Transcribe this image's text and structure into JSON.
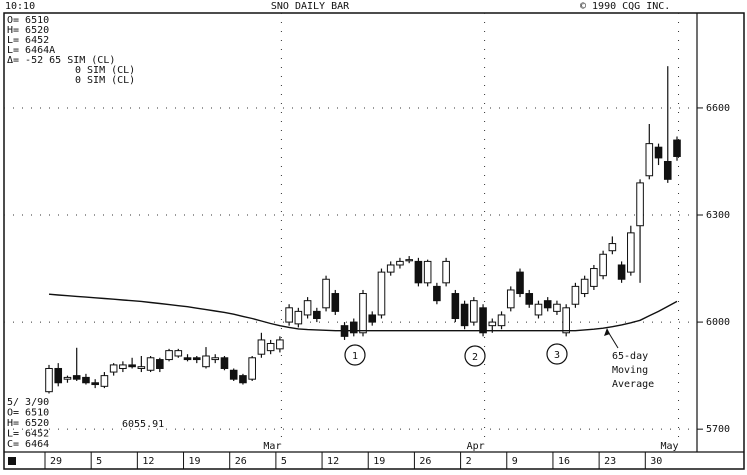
{
  "chart_data": {
    "type": "candlestick",
    "title": "SNO DAILY BAR",
    "time": "10:10",
    "copyright": "© 1990 CQG INC.",
    "readout_top": [
      "O= 6510",
      "H= 6520",
      "L= 6452",
      "L= 6464A",
      "Δ=   -52 65 SIM (CL)",
      "0 SIM (CL)",
      "0 SIM (CL)"
    ],
    "readout_bottom": [
      "5/ 3/90",
      "O= 6510",
      "H= 6520",
      "L= 6452",
      "C= 6464"
    ],
    "ma_value": 6055.91,
    "markers": [
      "1",
      "2",
      "3"
    ],
    "ma_label": [
      "65-day",
      "Moving",
      "Average"
    ],
    "categories": [
      "29",
      null,
      null,
      null,
      null,
      "5",
      null,
      null,
      null,
      null,
      "12",
      null,
      null,
      null,
      null,
      "19",
      null,
      null,
      null,
      null,
      "26",
      null,
      null,
      null,
      null,
      "5",
      null,
      null,
      null,
      null,
      "12",
      null,
      null,
      null,
      null,
      "19",
      null,
      null,
      null,
      null,
      "26",
      null,
      null,
      null,
      null,
      "2",
      null,
      null,
      null,
      null,
      "9",
      null,
      null,
      null,
      null,
      "16",
      null,
      null,
      null,
      null,
      "23",
      null,
      null,
      null,
      null,
      "30",
      null,
      null,
      null
    ],
    "months": [
      null,
      null,
      null,
      null,
      null,
      null,
      null,
      null,
      null,
      null,
      null,
      null,
      null,
      null,
      null,
      null,
      null,
      null,
      null,
      null,
      null,
      null,
      null,
      "Mar",
      null,
      null,
      null,
      null,
      null,
      null,
      null,
      null,
      null,
      null,
      null,
      null,
      null,
      null,
      null,
      null,
      null,
      null,
      null,
      null,
      null,
      "Apr",
      null,
      null,
      null,
      null,
      null,
      null,
      null,
      null,
      null,
      null,
      null,
      null,
      null,
      null,
      null,
      null,
      null,
      null,
      null,
      null,
      "May",
      null,
      null
    ],
    "open": [
      5805,
      5870,
      5840,
      5850,
      5845,
      5830,
      5820,
      5860,
      5870,
      5880,
      5870,
      5865,
      5895,
      5895,
      5905,
      5900,
      5900,
      5875,
      5895,
      5900,
      5865,
      5850,
      5840,
      5910,
      5920,
      5925,
      6000,
      5995,
      6020,
      6030,
      6040,
      6080,
      5990,
      6000,
      5970,
      6020,
      6020,
      6140,
      6160,
      6175,
      6170,
      6110,
      6100,
      6110,
      6080,
      6050,
      6000,
      6040,
      5990,
      5990,
      6040,
      6140,
      6080,
      6020,
      6060,
      6030,
      5970,
      6050,
      6080,
      6100,
      6130,
      6200,
      6160,
      6140,
      6270,
      6410,
      6490,
      6450,
      6510
    ],
    "high": [
      5880,
      5885,
      5850,
      5928,
      5855,
      5840,
      5860,
      5885,
      5890,
      5900,
      5905,
      5905,
      5900,
      5925,
      5925,
      5910,
      5905,
      5930,
      5910,
      5905,
      5870,
      5855,
      5905,
      5970,
      5950,
      5960,
      6050,
      6040,
      6070,
      6040,
      6130,
      6090,
      6000,
      6010,
      6090,
      6030,
      6150,
      6170,
      6180,
      6185,
      6180,
      6175,
      6110,
      6180,
      6090,
      6060,
      6070,
      6050,
      6010,
      6030,
      6100,
      6150,
      6090,
      6060,
      6070,
      6060,
      6050,
      6110,
      6130,
      6160,
      6200,
      6240,
      6170,
      6270,
      6400,
      6555,
      6500,
      6717,
      6520
    ],
    "low": [
      5800,
      5820,
      5830,
      5835,
      5825,
      5815,
      5815,
      5850,
      5860,
      5870,
      5860,
      5860,
      5860,
      5890,
      5900,
      5890,
      5885,
      5870,
      5885,
      5865,
      5835,
      5825,
      5835,
      5900,
      5910,
      5915,
      5990,
      5985,
      6010,
      6000,
      6030,
      6020,
      5950,
      5960,
      5960,
      5990,
      6010,
      6130,
      6150,
      6165,
      6100,
      6100,
      6050,
      6100,
      6000,
      5980,
      5990,
      5960,
      5970,
      5980,
      6030,
      6070,
      6040,
      6010,
      6030,
      6020,
      5960,
      6040,
      6070,
      6090,
      6120,
      6190,
      6110,
      6130,
      6110,
      6400,
      6440,
      6390,
      6452
    ],
    "close": [
      5870,
      5830,
      5845,
      5840,
      5830,
      5825,
      5850,
      5880,
      5880,
      5875,
      5875,
      5900,
      5870,
      5920,
      5920,
      5895,
      5895,
      5905,
      5900,
      5870,
      5840,
      5830,
      5900,
      5950,
      5940,
      5950,
      6040,
      6030,
      6060,
      6010,
      6120,
      6030,
      5960,
      5970,
      6080,
      6000,
      6140,
      6160,
      6170,
      6175,
      6110,
      6170,
      6060,
      6170,
      6010,
      5990,
      6060,
      5970,
      6000,
      6020,
      6090,
      6080,
      6050,
      6050,
      6040,
      6050,
      6040,
      6100,
      6120,
      6150,
      6190,
      6220,
      6120,
      6250,
      6390,
      6500,
      6460,
      6400,
      6464
    ],
    "ma": [
      6078,
      6076,
      6074,
      6072,
      6070,
      6068,
      6066,
      6064,
      6062,
      6060,
      6058,
      6055,
      6052,
      6049,
      6046,
      6043,
      6039,
      6035,
      6031,
      6027,
      6022,
      6016,
      6010,
      6003,
      5996,
      5990,
      5985,
      5981,
      5979,
      5978,
      5977,
      5976,
      5976,
      5976,
      5976,
      5976,
      5976,
      5976,
      5976,
      5976,
      5976,
      5976,
      5976,
      5976,
      5976,
      5976,
      5976,
      5976,
      5976,
      5976,
      5976,
      5976,
      5976,
      5976,
      5976,
      5976,
      5976,
      5976,
      5978,
      5980,
      5983,
      5987,
      5992,
      5998,
      6005,
      6018,
      6030,
      6044,
      6058
    ],
    "ylim": [
      5636,
      6866
    ],
    "yticks": [
      5700,
      6000,
      6300,
      6600
    ],
    "grid": true,
    "color": "#111"
  }
}
